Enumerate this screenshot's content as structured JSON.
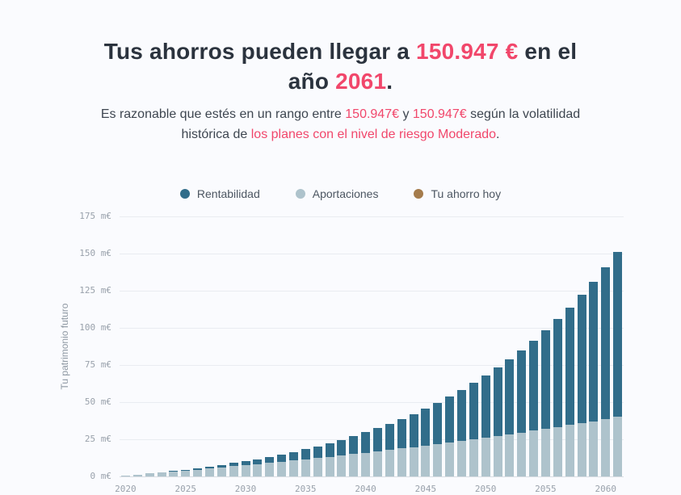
{
  "page": {
    "background": "#fafbfe",
    "accent_pink": "#f1476b"
  },
  "header": {
    "title_parts": [
      {
        "text": "Tus ahorros pueden llegar a "
      },
      {
        "text": "150.947 €",
        "highlight": true
      },
      {
        "text": " en el"
      },
      {
        "break": true
      },
      {
        "text": "año "
      },
      {
        "text": "2061",
        "highlight": true
      },
      {
        "text": "."
      }
    ],
    "subtitle_parts": [
      {
        "text": "Es razonable que estés en un rango entre "
      },
      {
        "text": "150.947€",
        "highlight": true
      },
      {
        "text": " y "
      },
      {
        "text": "150.947€",
        "highlight": true
      },
      {
        "text": " según la volatilidad"
      },
      {
        "break": true
      },
      {
        "text": "histórica de "
      },
      {
        "text": "los planes con el nivel de riesgo Moderado",
        "highlight": true
      },
      {
        "text": "."
      }
    ]
  },
  "legend": {
    "items": [
      {
        "label": "Rentabilidad",
        "color": "#316d8a"
      },
      {
        "label": "Aportaciones",
        "color": "#aec3cc"
      },
      {
        "label": "Tu ahorro hoy",
        "color": "#a57c4c"
      }
    ]
  },
  "chart_data": {
    "type": "bar",
    "stacked": true,
    "grid": true,
    "legend_position": "top",
    "ylabel": "Tu patrimonio futuro",
    "y_unit": "m€",
    "ylim": [
      0,
      175
    ],
    "y_ticks": [
      "175 m€",
      "150 m€",
      "125 m€",
      "100 m€",
      "75 m€",
      "50 m€",
      "25 m€",
      "0 m€"
    ],
    "x_tick_labels": [
      "2020",
      "2025",
      "2030",
      "2035",
      "2040",
      "2045",
      "2050",
      "2055",
      "2060"
    ],
    "years": [
      2020,
      2021,
      2022,
      2023,
      2024,
      2025,
      2026,
      2027,
      2028,
      2029,
      2030,
      2031,
      2032,
      2033,
      2034,
      2035,
      2036,
      2037,
      2038,
      2039,
      2040,
      2041,
      2042,
      2043,
      2044,
      2045,
      2046,
      2047,
      2048,
      2049,
      2050,
      2051,
      2052,
      2053,
      2054,
      2055,
      2056,
      2057,
      2058,
      2059,
      2060,
      2061
    ],
    "series": [
      {
        "name": "Tu ahorro hoy",
        "color": "#a57c4c",
        "values": [
          0,
          0,
          0,
          0,
          0,
          0,
          0,
          0,
          0,
          0,
          0,
          0,
          0,
          0,
          0,
          0,
          0,
          0,
          0,
          0,
          0,
          0,
          0,
          0,
          0,
          0,
          0,
          0,
          0,
          0,
          0,
          0,
          0,
          0,
          0,
          0,
          0,
          0,
          0,
          0,
          0,
          0
        ]
      },
      {
        "name": "Aportaciones",
        "color": "#aec3cc",
        "values": [
          0.6,
          1.2,
          1.9,
          2.5,
          3.2,
          3.9,
          4.6,
          5.3,
          6.0,
          6.8,
          7.5,
          8.3,
          9.1,
          9.9,
          10.7,
          11.5,
          12.3,
          13.2,
          14.1,
          15.0,
          15.9,
          16.8,
          17.8,
          18.8,
          19.8,
          20.8,
          21.8,
          22.8,
          23.9,
          25.0,
          26.1,
          27.3,
          28.4,
          29.6,
          30.8,
          32.1,
          33.3,
          34.6,
          35.9,
          37.2,
          38.6,
          40.0
        ]
      },
      {
        "name": "Rentabilidad",
        "color": "#316d8a",
        "values": [
          0.0,
          0.0,
          0.1,
          0.2,
          0.4,
          0.6,
          0.9,
          1.3,
          1.7,
          2.2,
          2.7,
          3.3,
          4.1,
          4.9,
          5.8,
          6.8,
          8.0,
          9.2,
          10.6,
          12.2,
          13.8,
          15.7,
          17.7,
          19.9,
          22.3,
          25.0,
          27.8,
          30.9,
          34.2,
          37.8,
          41.7,
          46.0,
          50.5,
          55.4,
          60.7,
          66.4,
          72.5,
          79.1,
          86.2,
          93.8,
          101.9,
          110.9
        ]
      }
    ],
    "final_total_label": "150.947 €",
    "final_year": "2061"
  }
}
